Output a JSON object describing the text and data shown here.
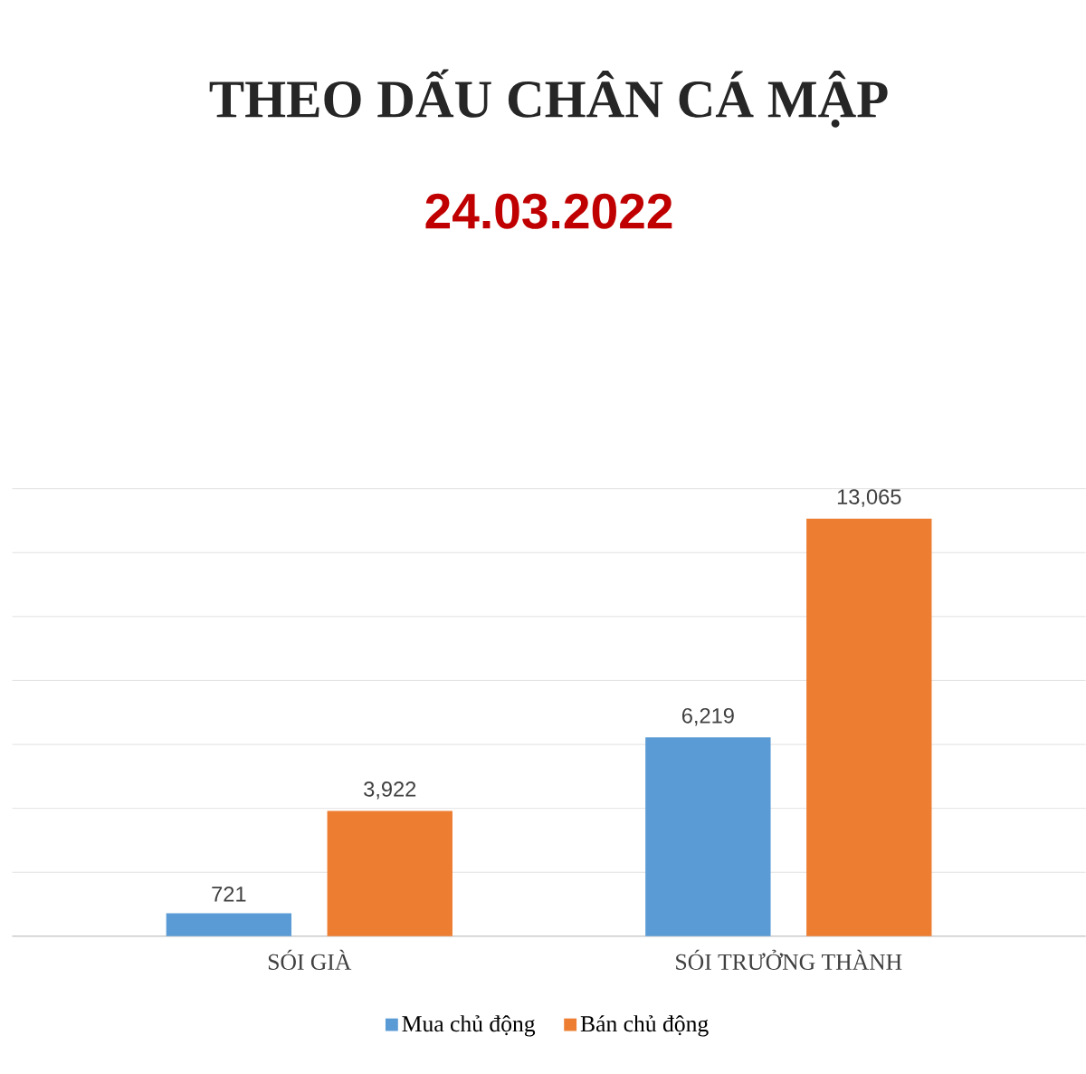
{
  "chart_data": {
    "type": "bar",
    "title": "THEO DẤU CHÂN CÁ MẬP",
    "subtitle": "24.03.2022",
    "categories": [
      "SÓI GIÀ",
      "SÓI TRƯỞNG THÀNH"
    ],
    "series": [
      {
        "name": "Mua chủ động",
        "color": "#5b9bd5",
        "values": [
          721,
          6219
        ],
        "value_labels": [
          "721",
          "6,219"
        ]
      },
      {
        "name": "Bán chủ động",
        "color": "#ed7d31",
        "values": [
          3922,
          13065
        ],
        "value_labels": [
          "3,922",
          "13,065"
        ]
      }
    ],
    "ylim": [
      0,
      14000
    ],
    "tick_labels": "x",
    "grid": "y",
    "legend": "bottom"
  }
}
